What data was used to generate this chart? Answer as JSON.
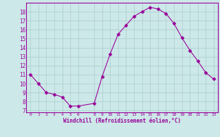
{
  "x": [
    0,
    1,
    2,
    3,
    4,
    5,
    6,
    8,
    9,
    10,
    11,
    12,
    13,
    14,
    15,
    16,
    17,
    18,
    19,
    20,
    21,
    22,
    23
  ],
  "y": [
    11,
    10,
    9,
    8.8,
    8.5,
    7.5,
    7.5,
    7.8,
    10.8,
    13.3,
    15.5,
    16.5,
    17.5,
    18.0,
    18.5,
    18.3,
    17.8,
    16.7,
    15.1,
    13.7,
    12.5,
    11.2,
    10.5
  ],
  "line_color": "#990099",
  "marker": "D",
  "marker_size": 2.5,
  "bg_color": "#cce8e8",
  "grid_color": "#aacccc",
  "xlabel": "Windchill (Refroidissement éolien,°C)",
  "tick_color": "#990099",
  "spine_color": "#990099",
  "yticks": [
    7,
    8,
    9,
    10,
    11,
    12,
    13,
    14,
    15,
    16,
    17,
    18
  ],
  "xticks": [
    0,
    1,
    2,
    3,
    4,
    5,
    6,
    8,
    9,
    10,
    11,
    12,
    13,
    14,
    15,
    16,
    17,
    18,
    19,
    20,
    21,
    22,
    23
  ],
  "ylim": [
    6.8,
    19.0
  ],
  "xlim": [
    -0.5,
    23.5
  ]
}
